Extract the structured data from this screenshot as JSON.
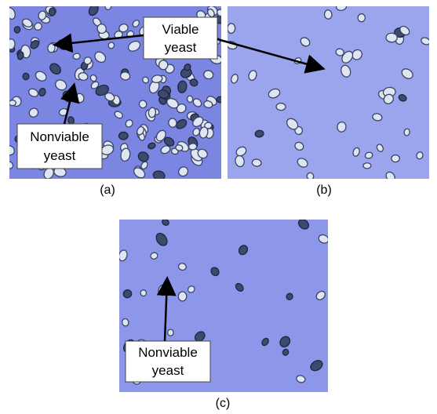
{
  "panels": [
    {
      "label": "(a)"
    },
    {
      "label": "(b)"
    },
    {
      "label": "(c)"
    }
  ],
  "annotations": [
    {
      "lines": [
        "Viable",
        "yeast"
      ]
    },
    {
      "lines": [
        "Nonviable",
        "yeast"
      ]
    },
    {
      "lines": [
        "Nonviable",
        "yeast"
      ]
    }
  ]
}
